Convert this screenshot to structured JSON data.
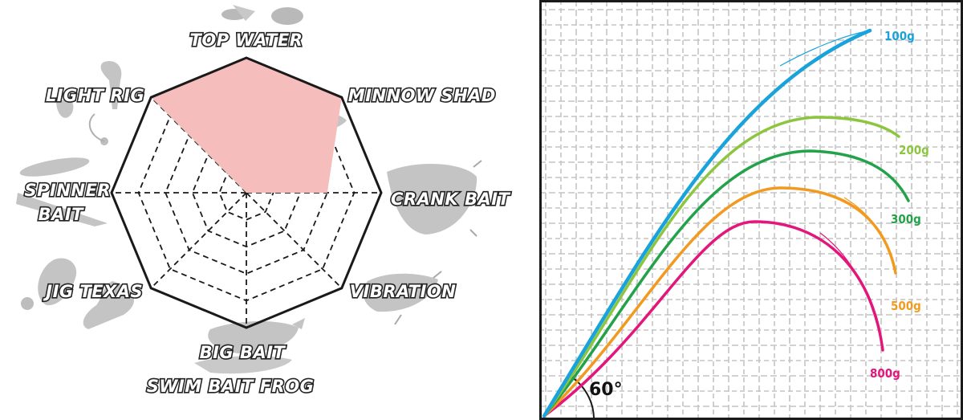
{
  "chart_data": [
    {
      "type": "radar",
      "categories": [
        "TOP WATER",
        "MINNOW SHAD",
        "CRANK BAIT",
        "VIBRATION",
        "BIG BAIT",
        "JIG TEXAS",
        "SPINNER BAIT",
        "LIGHT RIG"
      ],
      "category_lines": [
        [
          "TOP WATER"
        ],
        [
          "MINNOW SHAD"
        ],
        [
          "CRANK BAIT"
        ],
        [
          "VIBRATION"
        ],
        [
          "BIG BAIT",
          "SWIM BAIT  FROG"
        ],
        [
          "JIG  TEXAS"
        ],
        [
          "SPINNER",
          "BAIT"
        ],
        [
          "LIGHT RIG"
        ]
      ],
      "values": [
        5,
        5,
        3,
        0,
        0,
        0,
        0,
        5
      ],
      "scale_max": 5,
      "rings": 4,
      "fill_color": "#f6bdbd",
      "outline_color": "#1a1a1a",
      "grid": true
    },
    {
      "type": "line",
      "angle_label": "60°",
      "grid": true,
      "colors": {
        "grid": "#c4c4c4",
        "frame": "#1a1a1a"
      },
      "series": [
        {
          "name": "100g",
          "color": "#1aa3db"
        },
        {
          "name": "200g",
          "color": "#8cc63f"
        },
        {
          "name": "300g",
          "color": "#23a24a"
        },
        {
          "name": "500g",
          "color": "#f29a1f"
        },
        {
          "name": "800g",
          "color": "#e2167b"
        }
      ]
    }
  ]
}
